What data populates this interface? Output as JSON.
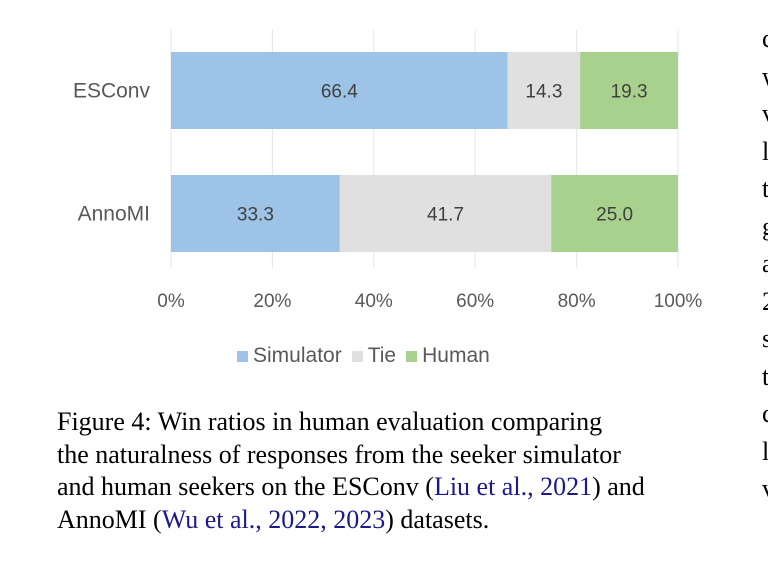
{
  "chart_data": {
    "type": "bar",
    "orientation": "horizontal-stacked",
    "categories": [
      "ESConv",
      "AnnoMI"
    ],
    "series": [
      {
        "name": "Simulator",
        "values": [
          66.4,
          33.3
        ],
        "color": "#9dc3e6"
      },
      {
        "name": "Tie",
        "values": [
          14.3,
          41.7
        ],
        "color": "#e0e0e0"
      },
      {
        "name": "Human",
        "values": [
          19.3,
          25.0
        ],
        "color": "#a9d18e"
      }
    ],
    "x_ticks": [
      "0%",
      "20%",
      "40%",
      "60%",
      "80%",
      "100%"
    ],
    "xlim": [
      0,
      100
    ],
    "grid": true,
    "legend_position": "bottom"
  },
  "caption": {
    "line1": "Figure 4:  Win ratios in human evaluation comparing",
    "line2": "the naturalness of responses from the seeker simulator",
    "line3_a": "and human seekers on the ESConv (",
    "line3_cite": "Liu et al., 2021",
    "line3_b": ") and",
    "line4_a": "AnnoMI (",
    "line4_cite": "Wu et al., 2022, 2023",
    "line4_b": ") datasets."
  },
  "right_column_letters": [
    "c",
    "w",
    "v",
    "l",
    "t",
    "g",
    "a",
    "2",
    "s",
    "t",
    "c",
    "l",
    "v"
  ]
}
